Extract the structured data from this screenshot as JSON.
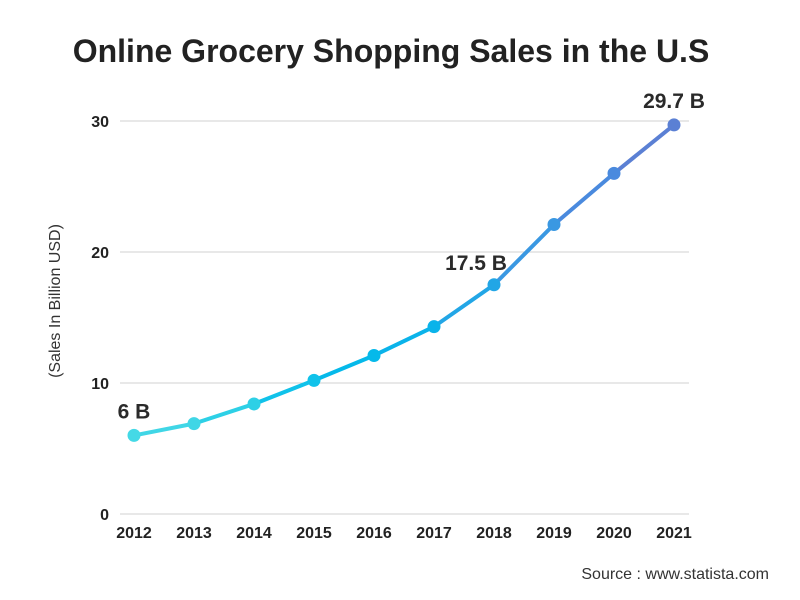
{
  "chart_data": {
    "type": "line",
    "title": "Online Grocery Shopping Sales in the U.S",
    "ylabel": "(Sales In Billion USD)",
    "xlabel": "",
    "categories": [
      "2012",
      "2013",
      "2014",
      "2015",
      "2016",
      "2017",
      "2018",
      "2019",
      "2020",
      "2021"
    ],
    "values": [
      6.0,
      6.9,
      8.4,
      10.2,
      12.1,
      14.3,
      17.5,
      22.1,
      26.0,
      29.7
    ],
    "point_colors": [
      "#44d9e6",
      "#40d6e6",
      "#2dd0e6",
      "#10c2ea",
      "#05b9ea",
      "#0ab3ea",
      "#22a6e6",
      "#3a98e2",
      "#4a8ade",
      "#5b80d4"
    ],
    "data_labels": [
      {
        "index": 0,
        "text": "6 B"
      },
      {
        "index": 6,
        "text": "17.5 B"
      },
      {
        "index": 9,
        "text": "29.7 B"
      }
    ],
    "yticks": [
      "0",
      "10",
      "20",
      "30"
    ],
    "ylim": [
      0,
      30
    ],
    "grid": true,
    "legend": "none"
  },
  "source": "Source : www.statista.com"
}
